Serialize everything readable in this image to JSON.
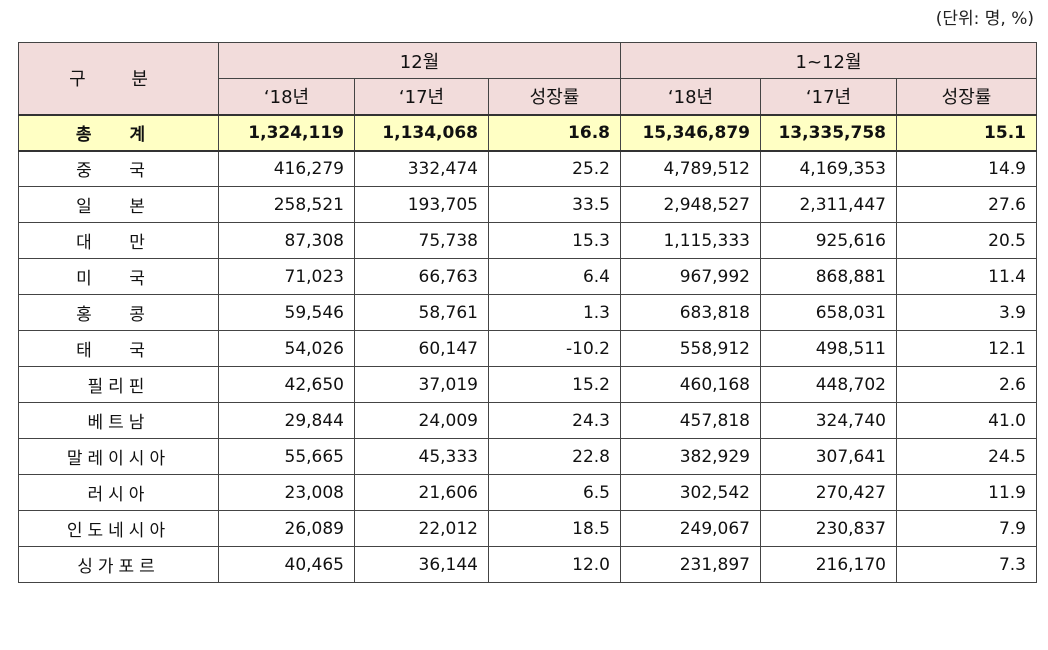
{
  "header": {
    "unit": "(단위: 명, %)"
  },
  "table": {
    "group_header": [
      "구 분",
      "12월",
      "1~12월"
    ],
    "sub_header": [
      "‘18년",
      "‘17년",
      "성장률",
      "‘18년",
      "‘17년",
      "성장률"
    ],
    "rows": [
      [
        "총 계",
        "1,324,119",
        "1,134,068",
        "16.8",
        "15,346,879",
        "13,335,758",
        "15.1"
      ],
      [
        "중 국",
        "416,279",
        "332,474",
        "25.2",
        "4,789,512",
        "4,169,353",
        "14.9"
      ],
      [
        "일 본",
        "258,521",
        "193,705",
        "33.5",
        "2,948,527",
        "2,311,447",
        "27.6"
      ],
      [
        "대 만",
        "87,308",
        "75,738",
        "15.3",
        "1,115,333",
        "925,616",
        "20.5"
      ],
      [
        "미 국",
        "71,023",
        "66,763",
        "6.4",
        "967,992",
        "868,881",
        "11.4"
      ],
      [
        "홍 콩",
        "59,546",
        "58,761",
        "1.3",
        "683,818",
        "658,031",
        "3.9"
      ],
      [
        "태 국",
        "54,026",
        "60,147",
        "-10.2",
        "558,912",
        "498,511",
        "12.1"
      ],
      [
        "필리핀",
        "42,650",
        "37,019",
        "15.2",
        "460,168",
        "448,702",
        "2.6"
      ],
      [
        "베트남",
        "29,844",
        "24,009",
        "24.3",
        "457,818",
        "324,740",
        "41.0"
      ],
      [
        "말레이시아",
        "55,665",
        "45,333",
        "22.8",
        "382,929",
        "307,641",
        "24.5"
      ],
      [
        "러시아",
        "23,008",
        "21,606",
        "6.5",
        "302,542",
        "270,427",
        "11.9"
      ],
      [
        "인도네시아",
        "26,089",
        "22,012",
        "18.5",
        "249,067",
        "230,837",
        "7.9"
      ],
      [
        "싱가포르",
        "40,465",
        "36,144",
        "12.0",
        "231,897",
        "216,170",
        "7.3"
      ]
    ]
  }
}
